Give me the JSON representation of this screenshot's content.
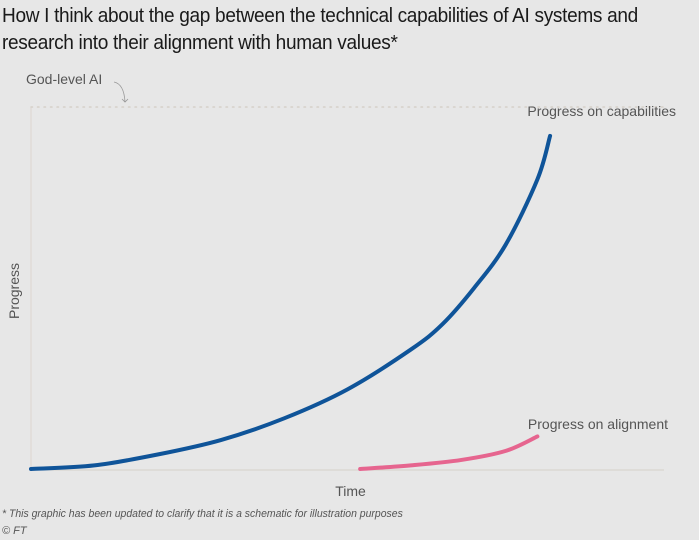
{
  "title": "How I think about the gap between the technical capabilities of AI systems and research into their alignment with human values*",
  "footnote": "* This graphic has been updated to clarify that it is a schematic for illustration purposes",
  "source": "© FT",
  "chart_data": {
    "type": "line",
    "title": "How I think about the gap between the technical capabilities of AI systems and research into their alignment with human values*",
    "xlabel": "Time",
    "ylabel": "Progress",
    "xlim": [
      0,
      1
    ],
    "ylim": [
      0,
      1
    ],
    "grid": false,
    "schematic": true,
    "reference_line": {
      "label": "God-level AI",
      "y": 1.0,
      "style": "dotted"
    },
    "series": [
      {
        "name": "Progress on capabilities",
        "color": "#0f5499",
        "x": [
          0.0,
          0.1,
          0.2,
          0.3,
          0.4,
          0.5,
          0.6,
          0.65,
          0.7,
          0.75,
          0.8,
          0.82
        ],
        "y": [
          0.0,
          0.01,
          0.04,
          0.08,
          0.14,
          0.22,
          0.33,
          0.4,
          0.5,
          0.62,
          0.8,
          0.92
        ]
      },
      {
        "name": "Progress on alignment",
        "color": "#e6658f",
        "x": [
          0.52,
          0.6,
          0.68,
          0.75,
          0.8
        ],
        "y": [
          0.0,
          0.01,
          0.025,
          0.05,
          0.09
        ]
      }
    ]
  }
}
